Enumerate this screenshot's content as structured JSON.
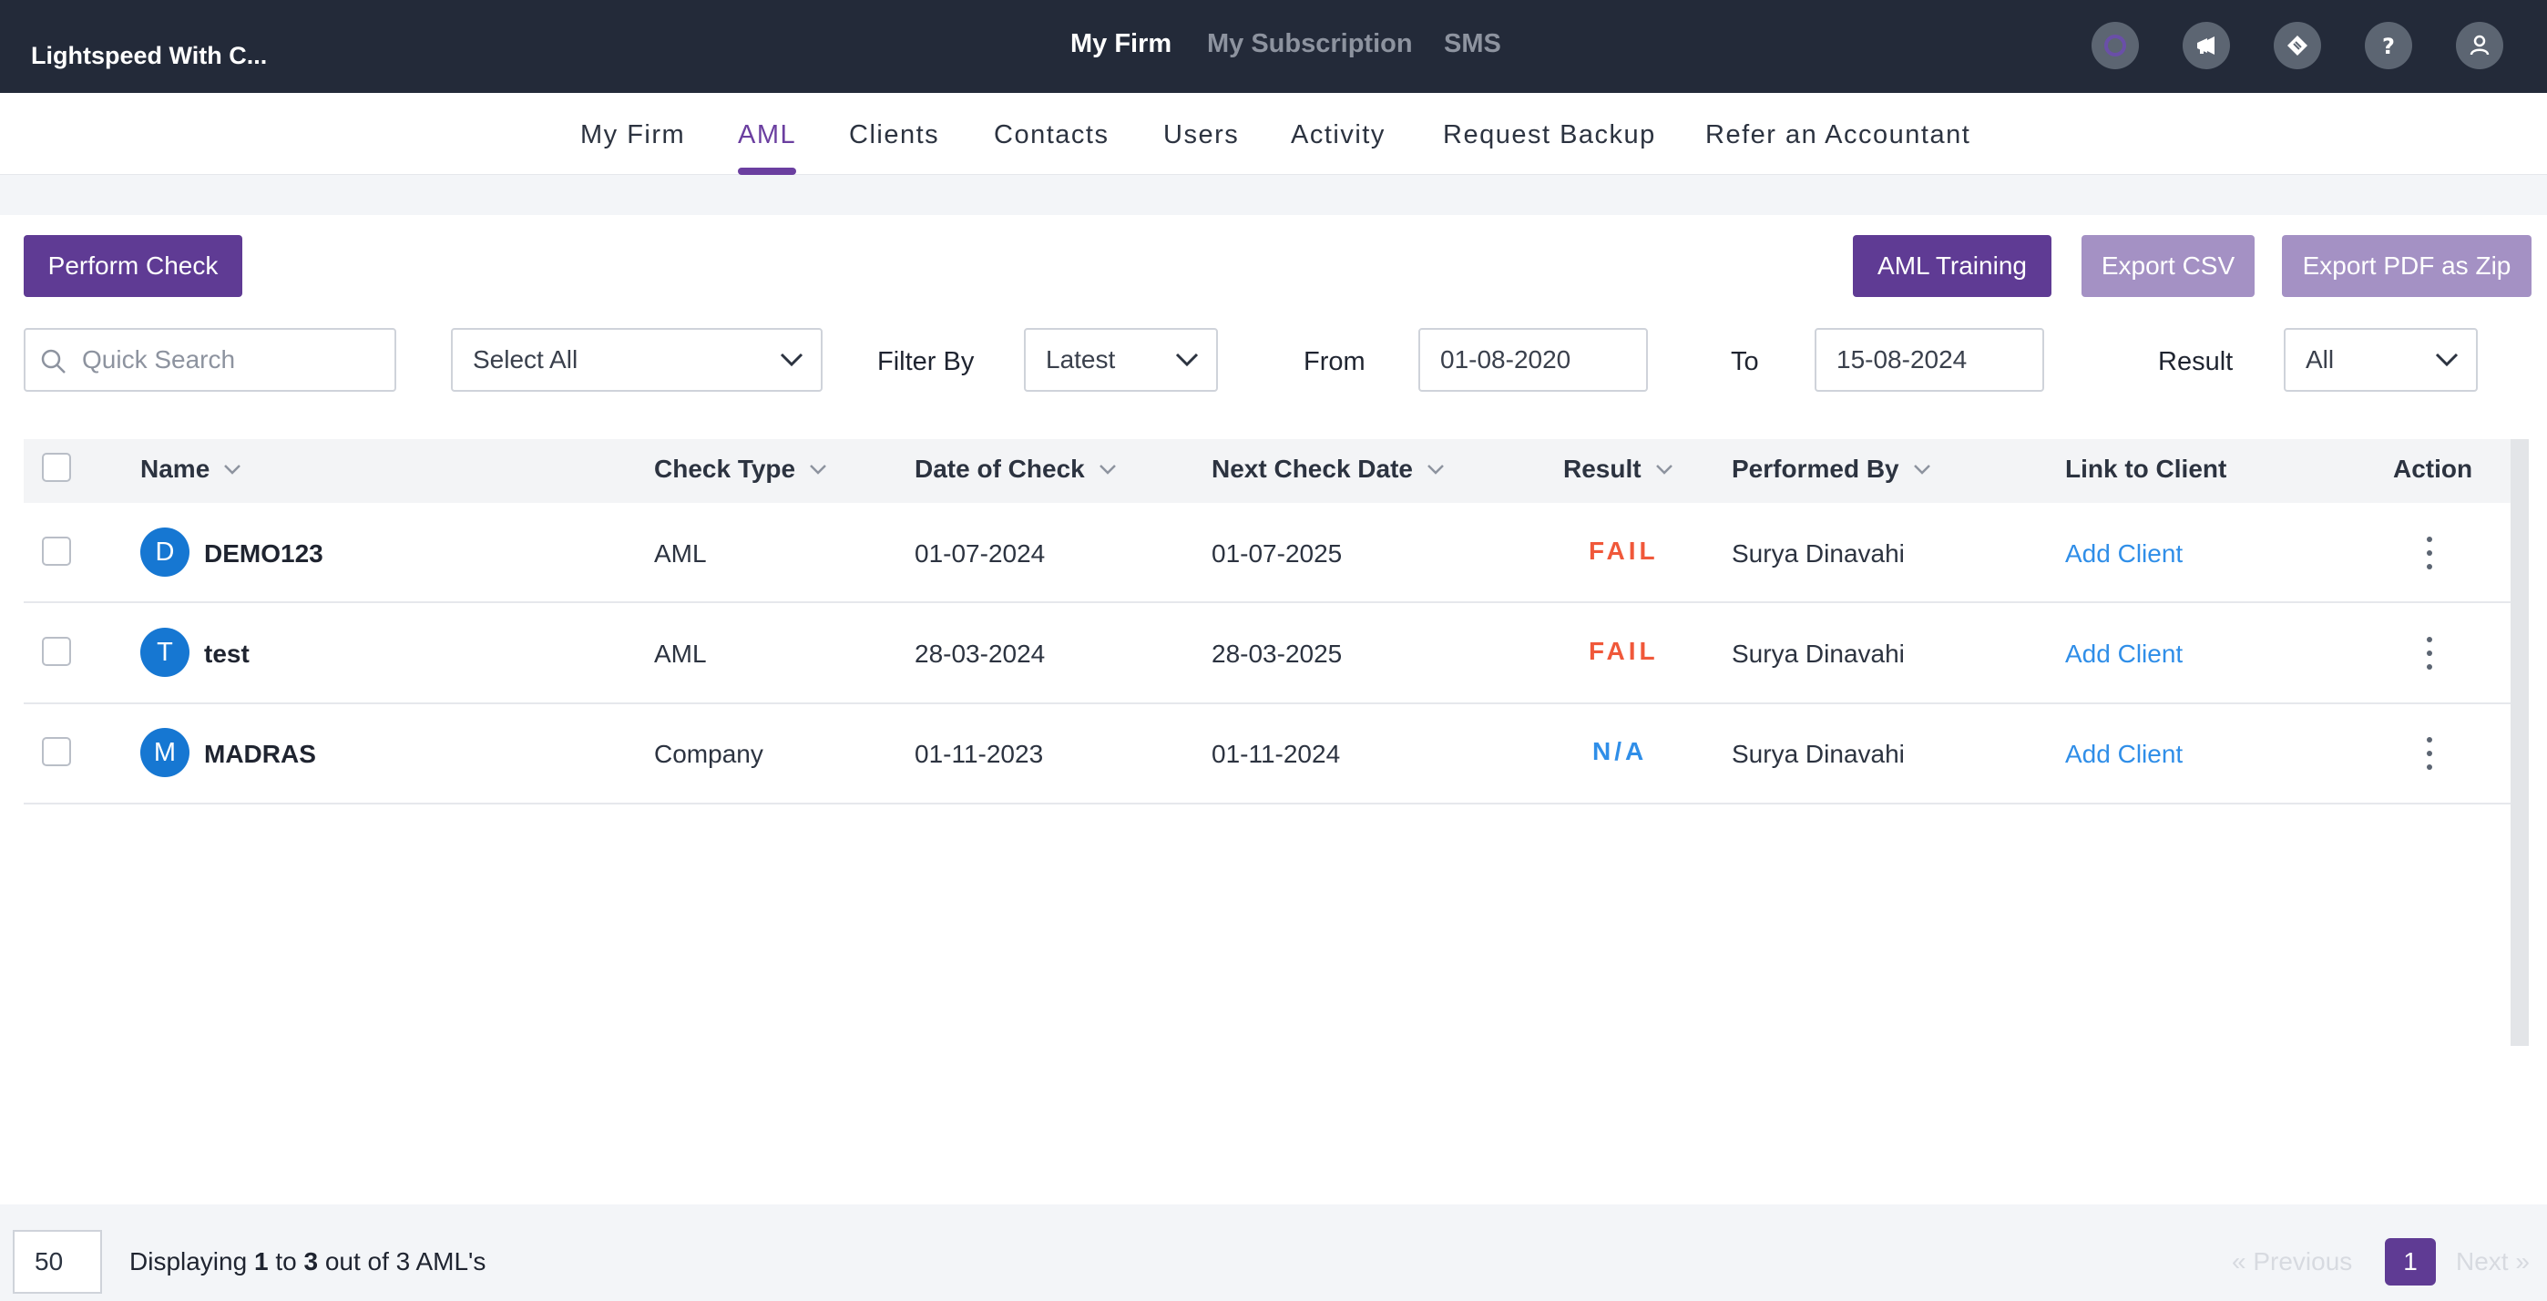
{
  "topbar": {
    "brand": "Lightspeed With C...",
    "nav": [
      "My Firm",
      "My Subscription",
      "SMS"
    ],
    "icons": [
      "google-icon",
      "megaphone-icon",
      "ticket-icon",
      "help-icon",
      "user-icon"
    ]
  },
  "subnav": {
    "items": [
      "My Firm",
      "AML",
      "Clients",
      "Contacts",
      "Users",
      "Activity",
      "Request Backup",
      "Refer an Accountant"
    ],
    "active": "AML"
  },
  "toolbar": {
    "perform_check": "Perform Check",
    "aml_training": "AML Training",
    "export_csv": "Export CSV",
    "export_pdf": "Export PDF as Zip"
  },
  "filters": {
    "search_placeholder": "Quick Search",
    "select_all": "Select All",
    "filter_by_label": "Filter By",
    "filter_by_value": "Latest",
    "from_label": "From",
    "from_value": "01-08-2020",
    "to_label": "To",
    "to_value": "15-08-2024",
    "result_label": "Result",
    "result_value": "All"
  },
  "table": {
    "headers": [
      "Name",
      "Check Type",
      "Date of Check",
      "Next Check Date",
      "Result",
      "Performed By",
      "Link to Client",
      "Action"
    ],
    "rows": [
      {
        "initial": "D",
        "name": "DEMO123",
        "check_type": "AML",
        "date_of_check": "01-07-2024",
        "next_check_date": "01-07-2025",
        "result": "FAIL",
        "performed_by": "Surya Dinavahi",
        "link": "Add Client"
      },
      {
        "initial": "T",
        "name": "test",
        "check_type": "AML",
        "date_of_check": "28-03-2024",
        "next_check_date": "28-03-2025",
        "result": "FAIL",
        "performed_by": "Surya Dinavahi",
        "link": "Add Client"
      },
      {
        "initial": "M",
        "name": "MADRAS",
        "check_type": "Company",
        "date_of_check": "01-11-2023",
        "next_check_date": "01-11-2024",
        "result": "N/A",
        "performed_by": "Surya Dinavahi",
        "link": "Add Client"
      }
    ]
  },
  "footer": {
    "page_size": "50",
    "displaying_prefix": "Displaying",
    "from": "1",
    "to_word": "to",
    "to": "3",
    "suffix": "out of 3 AML's",
    "previous": "« Previous",
    "page": "1",
    "next": "Next »"
  },
  "colors": {
    "accent": "#5f3b94",
    "accent_muted": "#a491c4",
    "fail": "#f0583a",
    "link": "#2f8ee8",
    "topbar": "#232a39"
  }
}
